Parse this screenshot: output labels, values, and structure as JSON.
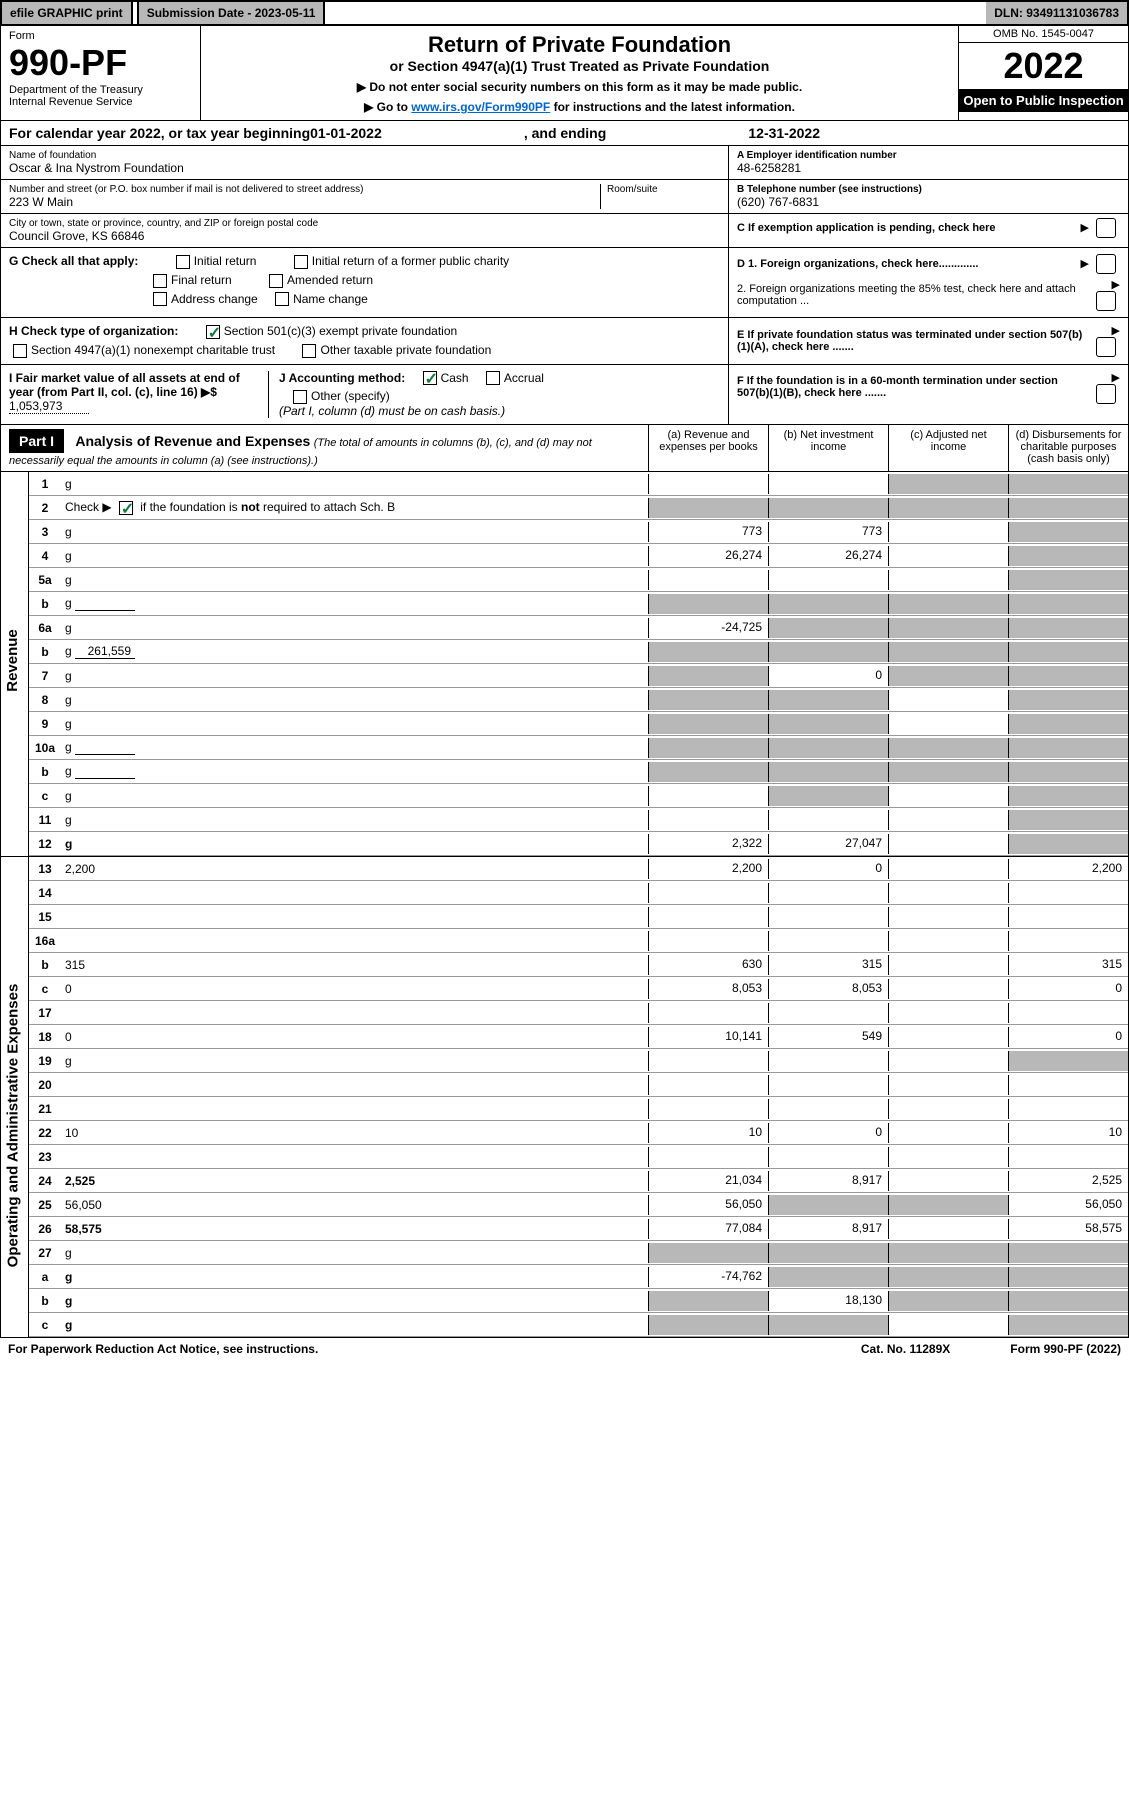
{
  "top": {
    "efile": "efile GRAPHIC print",
    "submission": "Submission Date - 2023-05-11",
    "dln": "DLN: 93491131036783"
  },
  "header": {
    "form": "Form",
    "formnum": "990-PF",
    "dept1": "Department of the Treasury",
    "dept2": "Internal Revenue Service",
    "title1": "Return of Private Foundation",
    "title2": "or Section 4947(a)(1) Trust Treated as Private Foundation",
    "note1": "▶ Do not enter social security numbers on this form as it may be made public.",
    "note2a": "▶ Go to ",
    "note2link": "www.irs.gov/Form990PF",
    "note2b": " for instructions and the latest information.",
    "omb": "OMB No. 1545-0047",
    "year": "2022",
    "openpub": "Open to Public Inspection"
  },
  "calyear": {
    "pre": "For calendar year 2022, or tax year beginning ",
    "begin": "01-01-2022",
    "mid": ", and ending ",
    "end": "12-31-2022"
  },
  "info": {
    "name_label": "Name of foundation",
    "name": "Oscar & Ina Nystrom Foundation",
    "addr_label": "Number and street (or P.O. box number if mail is not delivered to street address)",
    "addr": "223 W Main",
    "room_label": "Room/suite",
    "city_label": "City or town, state or province, country, and ZIP or foreign postal code",
    "city": "Council Grove, KS  66846",
    "a_label": "A Employer identification number",
    "a_val": "48-6258281",
    "b_label": "B Telephone number (see instructions)",
    "b_val": "(620) 767-6831",
    "c_label": "C If exemption application is pending, check here",
    "d1": "D 1. Foreign organizations, check here.............",
    "d2": "2. Foreign organizations meeting the 85% test, check here and attach computation ...",
    "e": "E  If private foundation status was terminated under section 507(b)(1)(A), check here .......",
    "f": "F  If the foundation is in a 60-month termination under section 507(b)(1)(B), check here ......."
  },
  "g": {
    "label": "G Check all that apply:",
    "opts": [
      "Initial return",
      "Initial return of a former public charity",
      "Final return",
      "Amended return",
      "Address change",
      "Name change"
    ]
  },
  "h": {
    "label": "H Check type of organization:",
    "o1": "Section 501(c)(3) exempt private foundation",
    "o2": "Section 4947(a)(1) nonexempt charitable trust",
    "o3": "Other taxable private foundation"
  },
  "i": {
    "label": "I Fair market value of all assets at end of year (from Part II, col. (c), line 16) ▶$",
    "val": "1,053,973"
  },
  "j": {
    "label": "J Accounting method:",
    "cash": "Cash",
    "accrual": "Accrual",
    "other": "Other (specify)",
    "note": "(Part I, column (d) must be on cash basis.)"
  },
  "part1": {
    "label": "Part I",
    "title": "Analysis of Revenue and Expenses",
    "note": "(The total of amounts in columns (b), (c), and (d) may not necessarily equal the amounts in column (a) (see instructions).)",
    "cols": {
      "a": "(a)  Revenue and expenses per books",
      "b": "(b)  Net investment income",
      "c": "(c)  Adjusted net income",
      "d": "(d)  Disbursements for charitable purposes (cash basis only)"
    }
  },
  "sidelabels": {
    "rev": "Revenue",
    "exp": "Operating and Administrative Expenses"
  },
  "rows": [
    {
      "n": "1",
      "d": "g",
      "a": "",
      "b": "",
      "c": "g"
    },
    {
      "n": "2",
      "d": "g",
      "a": "g",
      "b": "g",
      "c": "g",
      "checkgreen": true
    },
    {
      "n": "3",
      "d": "g",
      "a": "773",
      "b": "773",
      "c": ""
    },
    {
      "n": "4",
      "d": "g",
      "a": "26,274",
      "b": "26,274",
      "c": ""
    },
    {
      "n": "5a",
      "d": "g",
      "a": "",
      "b": "",
      "c": ""
    },
    {
      "n": "b",
      "d": "g",
      "a": "g",
      "b": "g",
      "c": "g",
      "inline": true
    },
    {
      "n": "6a",
      "d": "g",
      "a": "-24,725",
      "b": "g",
      "c": "g"
    },
    {
      "n": "b",
      "d": "g",
      "a": "g",
      "b": "g",
      "c": "g",
      "inline_val": "261,559"
    },
    {
      "n": "7",
      "d": "g",
      "a": "g",
      "b": "0",
      "c": "g"
    },
    {
      "n": "8",
      "d": "g",
      "a": "g",
      "b": "g",
      "c": ""
    },
    {
      "n": "9",
      "d": "g",
      "a": "g",
      "b": "g",
      "c": ""
    },
    {
      "n": "10a",
      "d": "g",
      "a": "g",
      "b": "g",
      "c": "g",
      "inline": true
    },
    {
      "n": "b",
      "d": "g",
      "a": "g",
      "b": "g",
      "c": "g",
      "inline": true
    },
    {
      "n": "c",
      "d": "g",
      "a": "",
      "b": "g",
      "c": ""
    },
    {
      "n": "11",
      "d": "g",
      "a": "",
      "b": "",
      "c": ""
    },
    {
      "n": "12",
      "d": "g",
      "a": "2,322",
      "b": "27,047",
      "c": "",
      "bold": true
    }
  ],
  "exp_rows": [
    {
      "n": "13",
      "d": "2,200",
      "a": "2,200",
      "b": "0",
      "c": ""
    },
    {
      "n": "14",
      "d": "",
      "a": "",
      "b": "",
      "c": ""
    },
    {
      "n": "15",
      "d": "",
      "a": "",
      "b": "",
      "c": ""
    },
    {
      "n": "16a",
      "d": "",
      "a": "",
      "b": "",
      "c": ""
    },
    {
      "n": "b",
      "d": "315",
      "a": "630",
      "b": "315",
      "c": ""
    },
    {
      "n": "c",
      "d": "0",
      "a": "8,053",
      "b": "8,053",
      "c": ""
    },
    {
      "n": "17",
      "d": "",
      "a": "",
      "b": "",
      "c": ""
    },
    {
      "n": "18",
      "d": "0",
      "a": "10,141",
      "b": "549",
      "c": ""
    },
    {
      "n": "19",
      "d": "g",
      "a": "",
      "b": "",
      "c": ""
    },
    {
      "n": "20",
      "d": "",
      "a": "",
      "b": "",
      "c": ""
    },
    {
      "n": "21",
      "d": "",
      "a": "",
      "b": "",
      "c": ""
    },
    {
      "n": "22",
      "d": "10",
      "a": "10",
      "b": "0",
      "c": ""
    },
    {
      "n": "23",
      "d": "",
      "a": "",
      "b": "",
      "c": ""
    },
    {
      "n": "24",
      "d": "2,525",
      "a": "21,034",
      "b": "8,917",
      "c": "",
      "bold": true
    },
    {
      "n": "25",
      "d": "56,050",
      "a": "56,050",
      "b": "g",
      "c": "g"
    },
    {
      "n": "26",
      "d": "58,575",
      "a": "77,084",
      "b": "8,917",
      "c": "",
      "bold": true
    },
    {
      "n": "27",
      "d": "g",
      "a": "g",
      "b": "g",
      "c": "g"
    },
    {
      "n": "a",
      "d": "g",
      "a": "-74,762",
      "b": "g",
      "c": "g",
      "bold": true
    },
    {
      "n": "b",
      "d": "g",
      "a": "g",
      "b": "18,130",
      "c": "g",
      "bold": true
    },
    {
      "n": "c",
      "d": "g",
      "a": "g",
      "b": "g",
      "c": "",
      "bold": true
    }
  ],
  "footer": {
    "pra": "For Paperwork Reduction Act Notice, see instructions.",
    "cat": "Cat. No. 11289X",
    "form": "Form 990-PF (2022)"
  },
  "colors": {
    "grey": "#b8b8b8",
    "green": "#0d7a3a",
    "link": "#0066cc"
  }
}
